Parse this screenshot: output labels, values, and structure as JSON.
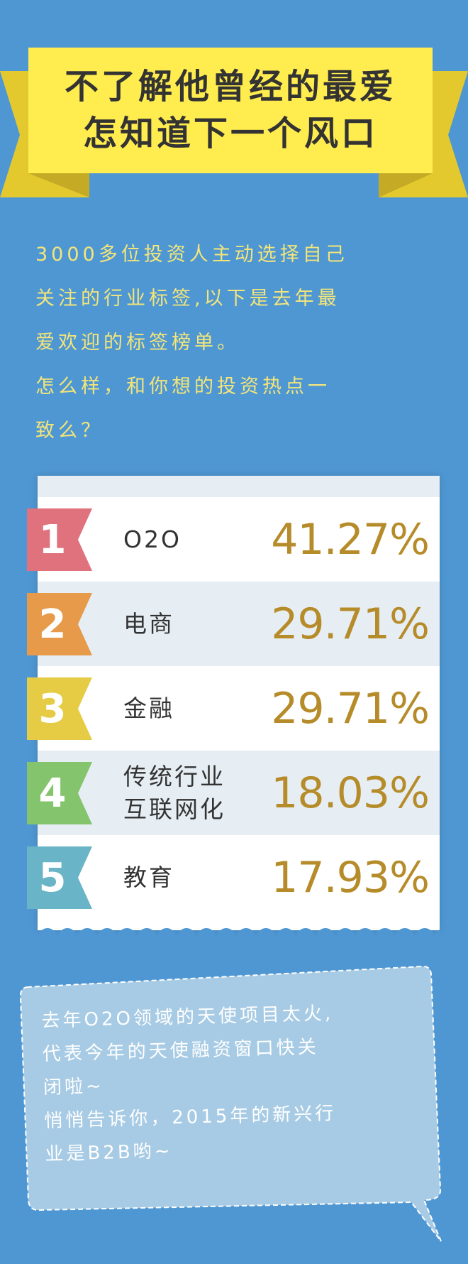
{
  "header": {
    "title_line1": "不了解他曾经的最爱",
    "title_line2": "怎知道下一个风口"
  },
  "intro": {
    "lines": [
      "3000多位投资人主动选择自己",
      "关注的行业标签,以下是去年最",
      "爱欢迎的标签榜单。",
      "怎么样，和你想的投资热点一",
      "致么？"
    ]
  },
  "ranking": [
    {
      "rank": "1",
      "label": "O2O",
      "percent": "41.27%",
      "color": "#df727d"
    },
    {
      "rank": "2",
      "label": "电商",
      "percent": "29.71%",
      "color": "#e69a4a"
    },
    {
      "rank": "3",
      "label": "金融",
      "percent": "29.71%",
      "color": "#e6cc45"
    },
    {
      "rank": "4",
      "label": "传统行业\n互联网化",
      "percent": "18.03%",
      "color": "#84c46d"
    },
    {
      "rank": "5",
      "label": "教育",
      "percent": "17.93%",
      "color": "#69b4c6"
    }
  ],
  "bubble": {
    "lines": [
      "去年O2O领域的天使项目太火,",
      "代表今年的天使融资窗口快关",
      "闭啦~",
      "悄悄告诉你，2015年的新兴行",
      "业是B2B哟~"
    ]
  },
  "colors": {
    "background": "#4f97d3",
    "banner": "#ffec4f",
    "percent": "#b68c2a",
    "intro_text": "#f3e57a"
  }
}
